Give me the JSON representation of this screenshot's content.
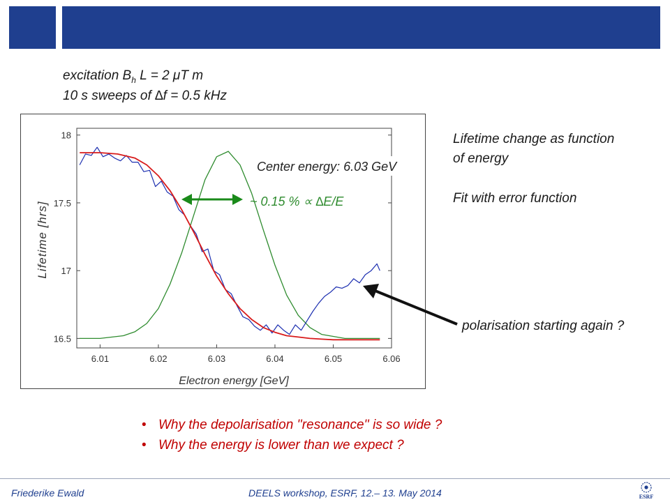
{
  "header": {
    "color": "#1f3f8f"
  },
  "intro": {
    "line1_pre": "excitation B",
    "line1_sub": "h",
    "line1_post": " L =   2 μT m",
    "line2": "10 s sweeps of ∆f = 0.5 kHz"
  },
  "side": {
    "title_l1": "Lifetime change as function",
    "title_l2": "of energy",
    "fit": "Fit with error function",
    "polarisation": "polarisation starting again ?"
  },
  "bullets": [
    "Why the depolarisation ''resonance'' is so wide ?",
    "Why the energy is lower than we expect ?"
  ],
  "footer": {
    "author": "Friederike Ewald",
    "event": "DEELS workshop, ESRF, 12.– 13. May 2014",
    "logo_text": "ESRF"
  },
  "chart_data": {
    "type": "line",
    "xlabel": "Electron energy [GeV]",
    "ylabel": "Lifetime [hrs]",
    "xlim": [
      6.006,
      6.06
    ],
    "ylim": [
      16.43,
      18.05
    ],
    "xticks": [
      "6.01",
      "6.02",
      "6.03",
      "6.04",
      "6.05",
      "6.06"
    ],
    "yticks": [
      "16.5",
      "17",
      "17.5",
      "18"
    ],
    "annotations": {
      "center": "Center energy:  6.03 GeV",
      "width": "~ 0.15 %  ∝  ∆E/E"
    },
    "colors": {
      "data": "#1c2fb0",
      "fit": "#d81b1b",
      "resonance": "#2e8b2e",
      "arrow": "#1a8a1a"
    },
    "series": [
      {
        "role": "measured",
        "x": [
          6.0065,
          6.0075,
          6.0085,
          6.0095,
          6.0105,
          6.0115,
          6.0125,
          6.0135,
          6.0145,
          6.0155,
          6.0165,
          6.0175,
          6.0185,
          6.0195,
          6.0205,
          6.0215,
          6.0225,
          6.0235,
          6.0245,
          6.0255,
          6.0265,
          6.0275,
          6.0285,
          6.0295,
          6.0305,
          6.0315,
          6.0325,
          6.0335,
          6.0345,
          6.0355,
          6.0365,
          6.0375,
          6.0385,
          6.0395,
          6.0405,
          6.0415,
          6.0425,
          6.0435,
          6.0445,
          6.0455,
          6.0465,
          6.0475,
          6.0485,
          6.0495,
          6.0505,
          6.0515,
          6.0525,
          6.0535,
          6.0545,
          6.0555,
          6.0565,
          6.0575,
          6.058
        ],
        "y": [
          17.78,
          17.86,
          17.85,
          17.91,
          17.84,
          17.86,
          17.83,
          17.81,
          17.85,
          17.8,
          17.8,
          17.73,
          17.74,
          17.62,
          17.66,
          17.58,
          17.55,
          17.45,
          17.41,
          17.33,
          17.27,
          17.14,
          17.16,
          17.0,
          16.97,
          16.86,
          16.83,
          16.74,
          16.66,
          16.64,
          16.59,
          16.56,
          16.6,
          16.54,
          16.6,
          16.56,
          16.53,
          16.6,
          16.56,
          16.63,
          16.7,
          16.76,
          16.81,
          16.84,
          16.88,
          16.87,
          16.89,
          16.94,
          16.91,
          16.97,
          17.0,
          17.05,
          17.0
        ]
      },
      {
        "role": "erf-fit",
        "x": [
          6.0065,
          6.01,
          6.013,
          6.016,
          6.018,
          6.02,
          6.022,
          6.024,
          6.026,
          6.028,
          6.03,
          6.032,
          6.034,
          6.036,
          6.038,
          6.04,
          6.042,
          6.044,
          6.046,
          6.048,
          6.05,
          6.052,
          6.054,
          6.056,
          6.058
        ],
        "y": [
          17.87,
          17.87,
          17.86,
          17.83,
          17.78,
          17.7,
          17.59,
          17.45,
          17.29,
          17.12,
          16.96,
          16.83,
          16.72,
          16.64,
          16.58,
          16.545,
          16.52,
          16.51,
          16.5,
          16.495,
          16.49,
          16.49,
          16.49,
          16.49,
          16.49
        ]
      },
      {
        "role": "gaussian",
        "x": [
          6.0065,
          6.01,
          6.014,
          6.016,
          6.018,
          6.02,
          6.022,
          6.024,
          6.026,
          6.028,
          6.03,
          6.032,
          6.034,
          6.036,
          6.038,
          6.04,
          6.042,
          6.044,
          6.046,
          6.048,
          6.052,
          6.058
        ],
        "y": [
          16.5,
          16.5,
          16.52,
          16.55,
          16.61,
          16.72,
          16.9,
          17.13,
          17.4,
          17.67,
          17.84,
          17.88,
          17.78,
          17.57,
          17.3,
          17.04,
          16.82,
          16.67,
          16.58,
          16.53,
          16.5,
          16.5
        ]
      }
    ]
  }
}
